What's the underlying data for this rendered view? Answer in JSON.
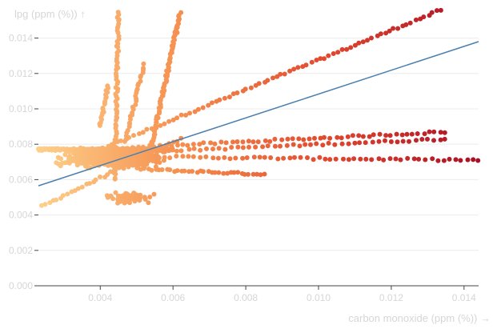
{
  "chart_data": {
    "type": "scatter",
    "xlabel": "carbon monoxide (ppm (%)) →",
    "ylabel": "lpg (ppm (%)) ↑",
    "xlim": [
      0.0023,
      0.0144
    ],
    "ylim": [
      0.0,
      0.0157
    ],
    "x_ticks": [
      "0.004",
      "0.006",
      "0.008",
      "0.010",
      "0.012",
      "0.014"
    ],
    "x_tick_values": [
      0.004,
      0.006,
      0.008,
      0.01,
      0.012,
      0.014
    ],
    "y_ticks": [
      "0.000",
      "0.002",
      "0.004",
      "0.006",
      "0.008",
      "0.010",
      "0.012",
      "0.014"
    ],
    "y_tick_values": [
      0.0,
      0.002,
      0.004,
      0.006,
      0.008,
      0.01,
      0.012,
      0.014
    ],
    "grid": "horizontal",
    "color_scale": [
      "#fdd08b",
      "#f58d4d",
      "#e0462e",
      "#a90f26"
    ],
    "trend_line": {
      "color": "#4a7faf",
      "start": [
        0.0023,
        0.00565
      ],
      "end": [
        0.0144,
        0.0138
      ]
    },
    "point_groups": [
      {
        "label": "upper-diagonal",
        "from": [
          0.0029,
          0.0068
        ],
        "to": [
          0.0135,
          0.0157
        ],
        "n": 90
      },
      {
        "label": "lower-diagonal",
        "from": [
          0.0023,
          0.0044
        ],
        "to": [
          0.0062,
          0.0083
        ],
        "n": 40
      },
      {
        "label": "band-0.0086",
        "from": [
          0.0046,
          0.0078
        ],
        "to": [
          0.0135,
          0.0087
        ],
        "n": 60
      },
      {
        "label": "band-0.0082",
        "from": [
          0.0044,
          0.0075
        ],
        "to": [
          0.0135,
          0.0083
        ],
        "n": 55
      },
      {
        "label": "band-0.0072",
        "from": [
          0.0048,
          0.0073
        ],
        "to": [
          0.0144,
          0.0071
        ],
        "n": 60
      },
      {
        "label": "band-0.0064",
        "from": [
          0.005,
          0.0066
        ],
        "to": [
          0.0085,
          0.0063
        ],
        "n": 35
      },
      {
        "label": "core-cluster",
        "center": [
          0.0043,
          0.0072
        ],
        "spread": [
          0.002,
          0.0008
        ],
        "n": 520
      },
      {
        "label": "dense-band-0.0077",
        "from": [
          0.0023,
          0.0077
        ],
        "to": [
          0.006,
          0.0077
        ],
        "n": 180
      },
      {
        "label": "spike-0.0045",
        "from": [
          0.0044,
          0.006
        ],
        "to": [
          0.0045,
          0.0155
        ],
        "n": 70
      },
      {
        "label": "spike-0.0058",
        "from": [
          0.0053,
          0.007
        ],
        "to": [
          0.0062,
          0.0154
        ],
        "n": 90
      },
      {
        "label": "lobe-0.0050",
        "from": [
          0.0047,
          0.0082
        ],
        "to": [
          0.0052,
          0.0125
        ],
        "n": 30
      },
      {
        "label": "lobe-0.0041",
        "from": [
          0.004,
          0.009
        ],
        "to": [
          0.0042,
          0.0113
        ],
        "n": 20
      },
      {
        "label": "bottom-lobe",
        "center": [
          0.0048,
          0.005
        ],
        "spread": [
          0.0008,
          0.0006
        ],
        "n": 60
      }
    ]
  }
}
